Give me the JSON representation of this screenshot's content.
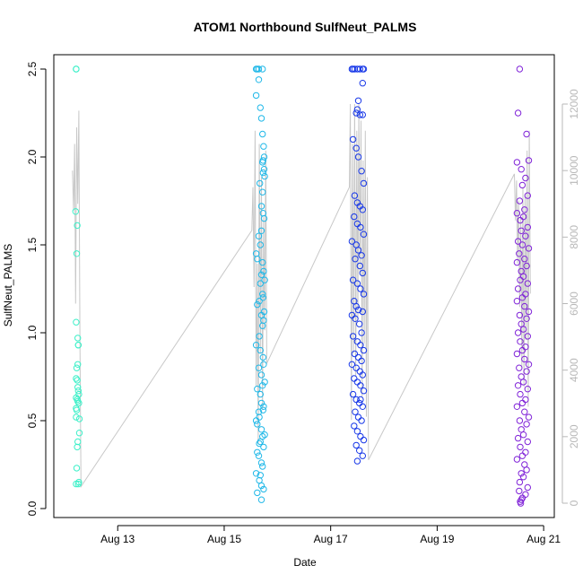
{
  "chart_data": {
    "type": "scatter",
    "title": "ATOM1 Northbound SulfNeut_PALMS",
    "xlabel": "Date",
    "ylabel": "SulfNeut_PALMS",
    "x_unit": "days in August",
    "xlim": [
      11.8,
      21.2
    ],
    "ylim": [
      0,
      2.5
    ],
    "y_ticks": [
      0.0,
      0.5,
      1.0,
      1.5,
      2.0,
      2.5
    ],
    "y_tick_labels": [
      "0.0",
      "0.5",
      "1.0",
      "1.5",
      "2.0",
      "2.5"
    ],
    "x_ticks": [
      13,
      15,
      17,
      19,
      21
    ],
    "x_tick_labels": [
      "Aug 13",
      "Aug 15",
      "Aug 17",
      "Aug 19",
      "Aug 21"
    ],
    "y2_lim": [
      0,
      12500
    ],
    "y2_ticks": [
      0,
      2000,
      4000,
      6000,
      8000,
      10000,
      12000
    ],
    "y2_tick_labels": [
      "0",
      "2000",
      "4000",
      "6000",
      "8000",
      "10000",
      "12000"
    ],
    "grid": false,
    "colors": {
      "altitude_line": "#c8c8c8",
      "axis": "#000000",
      "right_axis": "#b8b8b8"
    },
    "series": [
      {
        "color": "#3cf0c8",
        "x": [
          12.22,
          12.22,
          12.21,
          12.24,
          12.23,
          12.22,
          12.25,
          12.26,
          12.26,
          12.25,
          12.23,
          12.22,
          12.24,
          12.25,
          12.26,
          12.27,
          12.22,
          12.24,
          12.25,
          12.22,
          12.23,
          12.22,
          12.28,
          12.28,
          12.25,
          12.24,
          12.27,
          12.26,
          12.23,
          12.27,
          12.22
        ],
        "y": [
          2.5,
          2.5,
          1.69,
          1.61,
          1.45,
          1.06,
          0.97,
          0.93,
          0.93,
          0.82,
          0.8,
          0.74,
          0.73,
          0.69,
          0.67,
          0.65,
          0.63,
          0.62,
          0.61,
          0.57,
          0.56,
          0.52,
          0.51,
          0.43,
          0.38,
          0.35,
          0.15,
          0.14,
          0.23,
          0.6,
          0.14
        ]
      },
      {
        "color": "#20b8e8",
        "x": [
          15.6,
          15.62,
          15.65,
          15.72,
          15.65,
          15.6,
          15.68,
          15.7,
          15.72,
          15.74,
          15.75,
          15.73,
          15.72,
          15.75,
          15.73,
          15.76,
          15.67,
          15.72,
          15.7,
          15.73,
          15.75,
          15.7,
          15.65,
          15.68,
          15.6,
          15.62,
          15.72,
          15.74,
          15.7,
          15.76,
          15.68,
          15.72,
          15.73,
          15.66,
          15.62,
          15.75,
          15.7,
          15.74,
          15.72,
          15.66,
          15.6,
          15.68,
          15.73,
          15.74,
          15.65,
          15.7,
          15.76,
          15.72,
          15.62,
          15.68,
          15.7,
          15.74,
          15.73,
          15.65,
          15.66,
          15.6,
          15.62,
          15.7,
          15.76,
          15.72,
          15.68,
          15.66,
          15.74,
          15.62,
          15.65,
          15.7,
          15.72,
          15.6,
          15.68,
          15.66,
          15.7,
          15.74,
          15.62,
          15.7
        ],
        "y": [
          2.5,
          2.5,
          2.5,
          2.5,
          2.44,
          2.35,
          2.28,
          2.22,
          2.13,
          2.06,
          2.0,
          1.98,
          1.97,
          1.93,
          1.91,
          1.89,
          1.85,
          1.8,
          1.72,
          1.68,
          1.65,
          1.58,
          1.55,
          1.5,
          1.45,
          1.42,
          1.4,
          1.35,
          1.33,
          1.3,
          1.28,
          1.22,
          1.2,
          1.18,
          1.16,
          1.12,
          1.1,
          1.07,
          1.04,
          0.98,
          0.93,
          0.9,
          0.86,
          0.82,
          0.8,
          0.76,
          0.72,
          0.7,
          0.68,
          0.65,
          0.6,
          0.58,
          0.56,
          0.55,
          0.52,
          0.5,
          0.48,
          0.45,
          0.42,
          0.41,
          0.38,
          0.37,
          0.35,
          0.32,
          0.3,
          0.26,
          0.24,
          0.2,
          0.19,
          0.16,
          0.13,
          0.11,
          0.09,
          0.05
        ]
      },
      {
        "color": "#1838e8",
        "x": [
          17.4,
          17.42,
          17.45,
          17.5,
          17.55,
          17.6,
          17.62,
          17.6,
          17.52,
          17.5,
          17.48,
          17.55,
          17.6,
          17.42,
          17.48,
          17.52,
          17.58,
          17.62,
          17.45,
          17.5,
          17.55,
          17.6,
          17.44,
          17.5,
          17.56,
          17.62,
          17.4,
          17.48,
          17.52,
          17.58,
          17.46,
          17.55,
          17.6,
          17.42,
          17.5,
          17.56,
          17.62,
          17.44,
          17.48,
          17.52,
          17.6,
          17.4,
          17.46,
          17.54,
          17.58,
          17.42,
          17.5,
          17.56,
          17.62,
          17.45,
          17.52,
          17.58,
          17.4,
          17.48,
          17.55,
          17.6,
          17.44,
          17.5,
          17.56,
          17.62,
          17.42,
          17.48,
          17.54,
          17.6,
          17.46,
          17.52,
          17.58,
          17.44,
          17.5,
          17.56,
          17.62,
          17.48,
          17.54,
          17.6,
          17.5,
          17.56
        ],
        "y": [
          2.5,
          2.5,
          2.5,
          2.5,
          2.5,
          2.5,
          2.5,
          2.42,
          2.32,
          2.27,
          2.25,
          2.24,
          2.24,
          2.1,
          2.05,
          2.0,
          1.92,
          1.85,
          1.78,
          1.74,
          1.72,
          1.7,
          1.66,
          1.62,
          1.6,
          1.56,
          1.52,
          1.5,
          1.47,
          1.44,
          1.42,
          1.38,
          1.34,
          1.3,
          1.28,
          1.25,
          1.22,
          1.18,
          1.15,
          1.13,
          1.12,
          1.1,
          1.08,
          1.05,
          1.0,
          0.98,
          0.95,
          0.93,
          0.9,
          0.88,
          0.86,
          0.84,
          0.82,
          0.8,
          0.78,
          0.76,
          0.74,
          0.72,
          0.7,
          0.67,
          0.65,
          0.62,
          0.6,
          0.58,
          0.55,
          0.52,
          0.5,
          0.47,
          0.44,
          0.41,
          0.39,
          0.36,
          0.33,
          0.3,
          0.27,
          0.62
        ]
      },
      {
        "color": "#8024d8",
        "x": [
          20.55,
          20.52,
          20.68,
          20.72,
          20.5,
          20.58,
          20.66,
          20.6,
          20.7,
          20.55,
          20.64,
          20.5,
          20.62,
          20.56,
          20.7,
          20.58,
          20.66,
          20.52,
          20.6,
          20.72,
          20.54,
          20.64,
          20.5,
          20.68,
          20.58,
          20.62,
          20.56,
          20.7,
          20.52,
          20.66,
          20.6,
          20.5,
          20.64,
          20.72,
          20.55,
          20.68,
          20.58,
          20.62,
          20.52,
          20.7,
          20.56,
          20.66,
          20.6,
          20.5,
          20.64,
          20.72,
          20.54,
          20.68,
          20.58,
          20.62,
          20.52,
          20.7,
          20.56,
          20.66,
          20.6,
          20.5,
          20.64,
          20.72,
          20.55,
          20.68,
          20.58,
          20.62,
          20.52,
          20.7,
          20.56,
          20.66,
          20.6,
          20.5,
          20.64,
          20.68,
          20.58,
          20.62,
          20.55,
          20.7,
          20.54,
          20.66,
          20.6,
          20.58,
          20.56,
          20.57
        ],
        "y": [
          2.5,
          2.25,
          2.13,
          1.98,
          1.97,
          1.93,
          1.88,
          1.84,
          1.78,
          1.75,
          1.7,
          1.68,
          1.66,
          1.64,
          1.6,
          1.58,
          1.55,
          1.52,
          1.5,
          1.48,
          1.45,
          1.42,
          1.4,
          1.38,
          1.35,
          1.32,
          1.3,
          1.28,
          1.25,
          1.22,
          1.2,
          1.18,
          1.15,
          1.12,
          1.1,
          1.08,
          1.05,
          1.02,
          1.0,
          0.98,
          0.95,
          0.92,
          0.9,
          0.88,
          0.85,
          0.82,
          0.8,
          0.78,
          0.75,
          0.72,
          0.7,
          0.68,
          0.65,
          0.62,
          0.6,
          0.58,
          0.55,
          0.52,
          0.5,
          0.48,
          0.45,
          0.42,
          0.4,
          0.38,
          0.35,
          0.32,
          0.3,
          0.28,
          0.25,
          0.22,
          0.2,
          0.18,
          0.15,
          0.12,
          0.1,
          0.08,
          0.06,
          0.05,
          0.04,
          0.03
        ]
      }
    ],
    "altitude_line": {
      "x": [
        12.15,
        12.17,
        12.19,
        12.21,
        12.23,
        12.25,
        12.27,
        12.29,
        12.31,
        15.52,
        15.54,
        15.56,
        15.58,
        15.6,
        15.62,
        15.64,
        15.66,
        15.68,
        15.7,
        15.72,
        15.74,
        15.76,
        15.78,
        15.8,
        17.35,
        17.37,
        17.39,
        17.41,
        17.43,
        17.45,
        17.47,
        17.49,
        17.51,
        17.53,
        17.55,
        17.57,
        17.59,
        17.61,
        17.63,
        17.65,
        17.67,
        17.69,
        17.71,
        20.45,
        20.47,
        20.49,
        20.51,
        20.53,
        20.55,
        20.57,
        20.59,
        20.61,
        20.63,
        20.65,
        20.67,
        20.69,
        20.71,
        20.73,
        20.75
      ],
      "y": [
        10000,
        8800,
        10800,
        6000,
        11300,
        9000,
        11800,
        5000,
        500,
        8200,
        9500,
        6500,
        11200,
        3500,
        7200,
        1800,
        10800,
        4500,
        9800,
        2800,
        8600,
        5200,
        10600,
        4200,
        9500,
        12000,
        2500,
        10800,
        4500,
        12000,
        3800,
        11200,
        5600,
        12000,
        6900,
        11500,
        3200,
        10300,
        4800,
        11200,
        2600,
        9800,
        1300,
        9900,
        8500,
        9700,
        7200,
        9100,
        5900,
        8600,
        4100,
        9500,
        3500,
        9300,
        4900,
        10600,
        2900,
        11200,
        6300
      ]
    }
  }
}
